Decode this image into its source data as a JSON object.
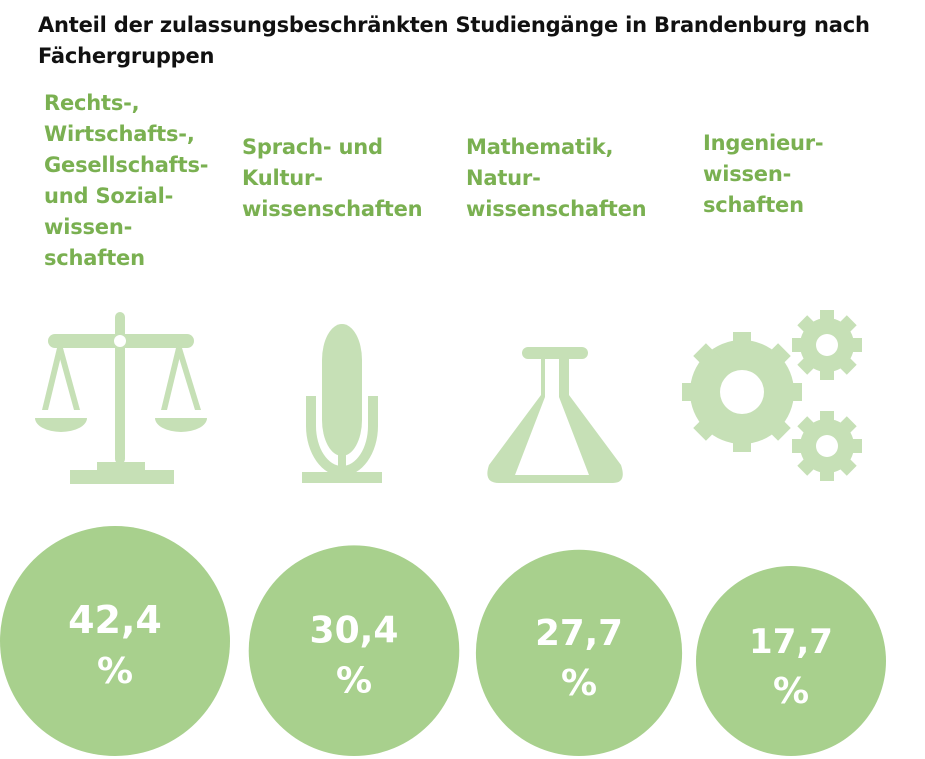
{
  "title": "Anteil der zulassungsbeschränkten Studiengänge in Brandenburg nach Fächergruppen",
  "colors": {
    "label": "#7ab051",
    "icon": "#c6e0b6",
    "circle": "#a8d08d",
    "title": "#111111"
  },
  "chart_data": {
    "type": "bubble",
    "title": "Anteil der zulassungsbeschränkten Studiengänge in Brandenburg nach Fächergruppen",
    "categories": [
      "Rechts-,\nWirtschafts-,\nGesellschafts-\nund Sozial-\nwissen-\nschaften",
      "Sprach- und\nKultur-\nwissenschaften",
      "Mathematik,\nNatur-\nwissenschaften",
      "Ingenieur-\nwissen-\nschaften"
    ],
    "icons": [
      "scales-icon",
      "microphone-icon",
      "flask-icon",
      "gears-icon"
    ],
    "values": [
      42.4,
      30.4,
      27.7,
      17.7
    ],
    "value_labels": [
      "42,4",
      "30,4",
      "27,7",
      "17,7"
    ],
    "unit": "%"
  }
}
